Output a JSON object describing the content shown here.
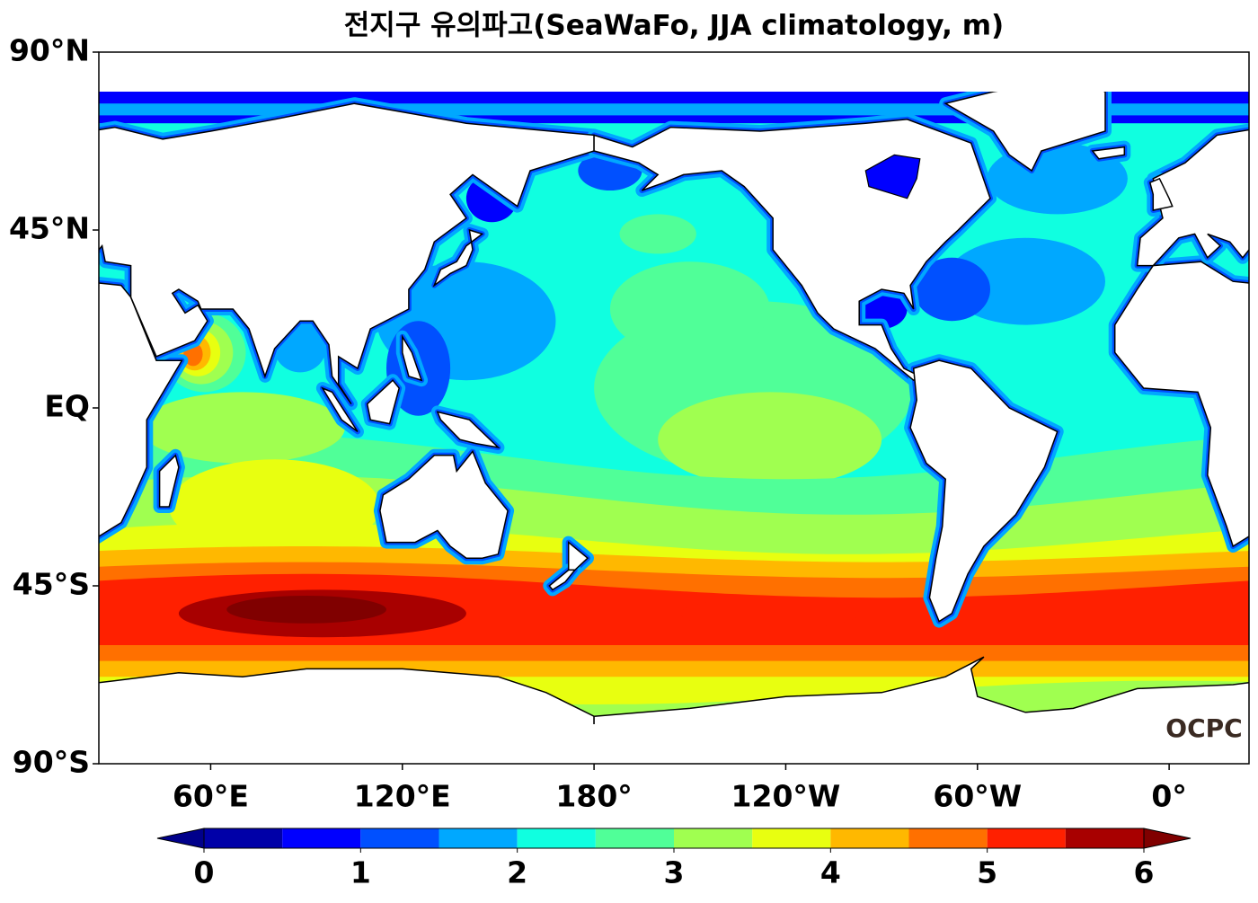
{
  "title": "전지구 유의파고(SeaWaFo, JJA climatology, m)",
  "map": {
    "xlim": [
      25,
      385
    ],
    "ylim": [
      -90,
      90
    ],
    "xticks": [
      {
        "value": 60,
        "label": "60°E"
      },
      {
        "value": 120,
        "label": "120°E"
      },
      {
        "value": 180,
        "label": "180°"
      },
      {
        "value": -120,
        "label": "120°W"
      },
      {
        "value": -60,
        "label": "60°W"
      },
      {
        "value": 0,
        "label": "0°"
      }
    ],
    "yticks": [
      {
        "value": 90,
        "label": "90°N"
      },
      {
        "value": 45,
        "label": "45°N"
      },
      {
        "value": 0,
        "label": "EQ"
      },
      {
        "value": -45,
        "label": "45°S"
      },
      {
        "value": -90,
        "label": "90°S"
      }
    ],
    "logo": "OCPC"
  },
  "colorbar": {
    "levels": [
      0,
      0.5,
      1,
      1.5,
      2,
      2.5,
      3,
      3.5,
      4,
      4.5,
      5,
      5.5,
      6
    ],
    "colors": [
      "#0000a8",
      "#0000ff",
      "#0050ff",
      "#00a8ff",
      "#10ffe0",
      "#50ff98",
      "#a0ff50",
      "#e8ff10",
      "#ffb800",
      "#ff7000",
      "#ff2000",
      "#a80000"
    ],
    "under": "#00008b",
    "over": "#800000",
    "ticks": [
      0,
      1,
      2,
      3,
      4,
      5,
      6
    ]
  }
}
